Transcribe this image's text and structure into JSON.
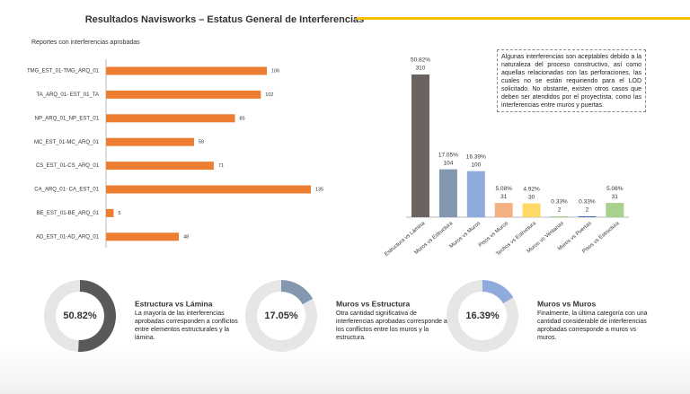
{
  "title": "Resultados Navisworks – Estatus General de Interferencias",
  "note": "Algunas interferencias son aceptables debido a la naturaleza del proceso constructivo, así como aquellas relacionadas con las perforaciones, las cuales no se están requiriendo para el LOD solicitado. No obstante, existen otros casos que deben ser atendidos por el proyectista, como las interferencias entre muros y puertas.",
  "chart_data": [
    {
      "type": "hbar",
      "title": "Reportes con interferencias aprobadas",
      "categories": [
        "TMG_EST_01-TMG_ARQ_01",
        "TA_ARQ_01- EST_01_TA",
        "NP_ARQ_01_NP_EST_01",
        "MC_EST_01-MC_ARQ_01",
        "CS_EST_01-CS_ARQ_01",
        "CA_ARQ_01- CA_EST_01",
        "BE_EST_01-BE_ARQ_01",
        "AD_EST_01-AD_ARQ_01"
      ],
      "values": [
        106,
        102,
        85,
        58,
        71,
        135,
        5,
        48
      ],
      "color": "#ed7d31"
    },
    {
      "type": "bar",
      "categories": [
        "Estructura vs Lámina",
        "Muros vs Estructura",
        "Muros vs Muros",
        "Pisos vs Muros",
        "Techos vs Estructura",
        "Muros vs Ventanas",
        "Muros vs Puertas",
        "Pisos vs Estructura"
      ],
      "values": [
        310,
        104,
        100,
        31,
        30,
        2,
        2,
        31
      ],
      "percentage_labels": [
        "50.82%",
        "17.05%",
        "16.39%",
        "5.08%",
        "4.92%",
        "0.33%",
        "0.33%",
        "5.08%"
      ],
      "colors": [
        "#6b6360",
        "#8497b0",
        "#8faadc",
        "#f4b183",
        "#ffd966",
        "#a9d18e",
        "#4472c4",
        "#a9d18e"
      ]
    },
    {
      "type": "donut",
      "title": "Estructura vs Lámina",
      "description": "La mayoría de las interferencias aprobadas corresponden a conflictos entre elementos estructurales y la lámina.",
      "values": [
        50.82,
        49.18
      ],
      "value_labels": [
        "50.82%",
        null
      ],
      "colors": [
        "#595959",
        "#e7e6e6"
      ]
    },
    {
      "type": "donut",
      "title": "Muros vs Estructura",
      "description": "Otra cantidad significativa de interferencias aprobadas corresponde a los conflictos entre los muros y la estructura.",
      "values": [
        17.05,
        82.95
      ],
      "value_labels": [
        "17.05%",
        null
      ],
      "colors": [
        "#8497b0",
        "#e7e6e6"
      ]
    },
    {
      "type": "donut",
      "title": "Muros vs Muros",
      "description": "Finalmente, la última categoría con una cantidad considerable de interferencias aprobadas corresponde a muros vs muros.",
      "values": [
        16.39,
        83.61
      ],
      "value_labels": [
        "16.39%",
        null
      ],
      "colors": [
        "#8faadc",
        "#e7e6e6"
      ]
    }
  ]
}
